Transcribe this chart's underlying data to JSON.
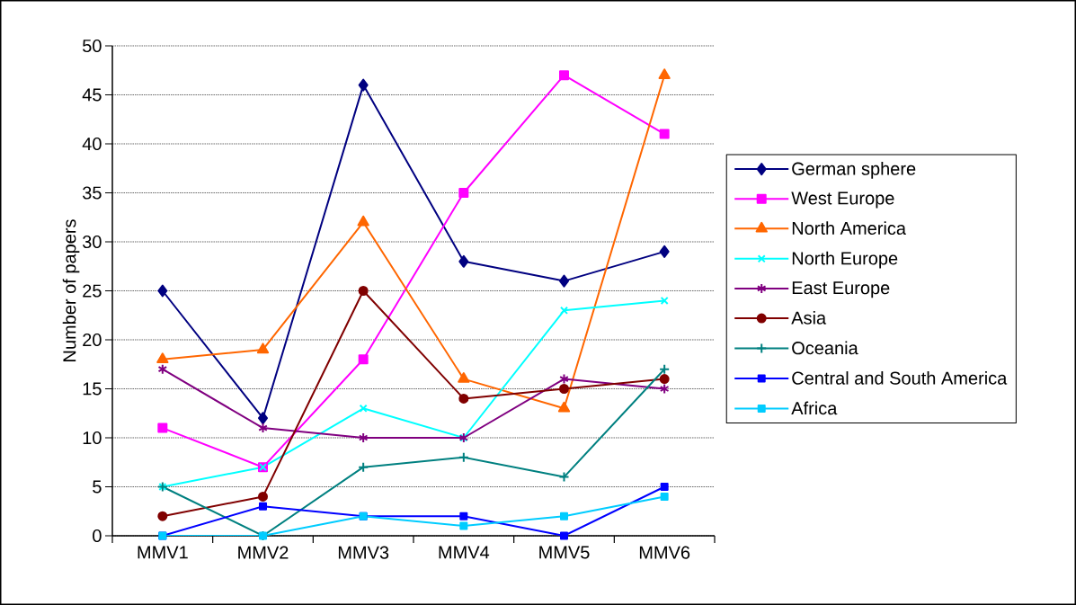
{
  "chart_data": {
    "type": "line",
    "ylabel": "Number of papers",
    "categories": [
      "MMV1",
      "MMV2",
      "MMV3",
      "MMV4",
      "MMV5",
      "MMV6"
    ],
    "ylim": [
      0,
      50
    ],
    "yticks": [
      0,
      5,
      10,
      15,
      20,
      25,
      30,
      35,
      40,
      45,
      50
    ],
    "grid": "y",
    "legend": "right",
    "line_style": "solid",
    "series": [
      {
        "name": "German sphere",
        "color": "#000080",
        "marker": "diamond",
        "values": [
          25,
          12,
          46,
          28,
          26,
          29
        ]
      },
      {
        "name": "West Europe",
        "color": "#ff00ff",
        "marker": "square",
        "values": [
          11,
          7,
          18,
          35,
          47,
          41
        ]
      },
      {
        "name": "North America",
        "color": "#ff6600",
        "marker": "triangle",
        "values": [
          18,
          19,
          32,
          16,
          13,
          47
        ]
      },
      {
        "name": "North Europe",
        "color": "#00ffff",
        "marker": "cross",
        "values": [
          5,
          7,
          13,
          10,
          23,
          24
        ]
      },
      {
        "name": "East Europe",
        "color": "#800080",
        "marker": "cross",
        "values": [
          17,
          11,
          10,
          10,
          16,
          15
        ]
      },
      {
        "name": "Asia",
        "color": "#800000",
        "marker": "circle",
        "values": [
          2,
          4,
          25,
          14,
          15,
          16
        ]
      },
      {
        "name": "Oceania",
        "color": "#008080",
        "marker": "plus",
        "values": [
          5,
          0,
          7,
          8,
          6,
          17
        ]
      },
      {
        "name": "Central and South America",
        "color": "#0000ff",
        "marker": "square",
        "values": [
          0,
          3,
          2,
          2,
          0,
          5
        ]
      },
      {
        "name": "Africa",
        "color": "#00ccff",
        "marker": "square",
        "values": [
          0,
          0,
          2,
          1,
          2,
          4
        ]
      }
    ]
  }
}
